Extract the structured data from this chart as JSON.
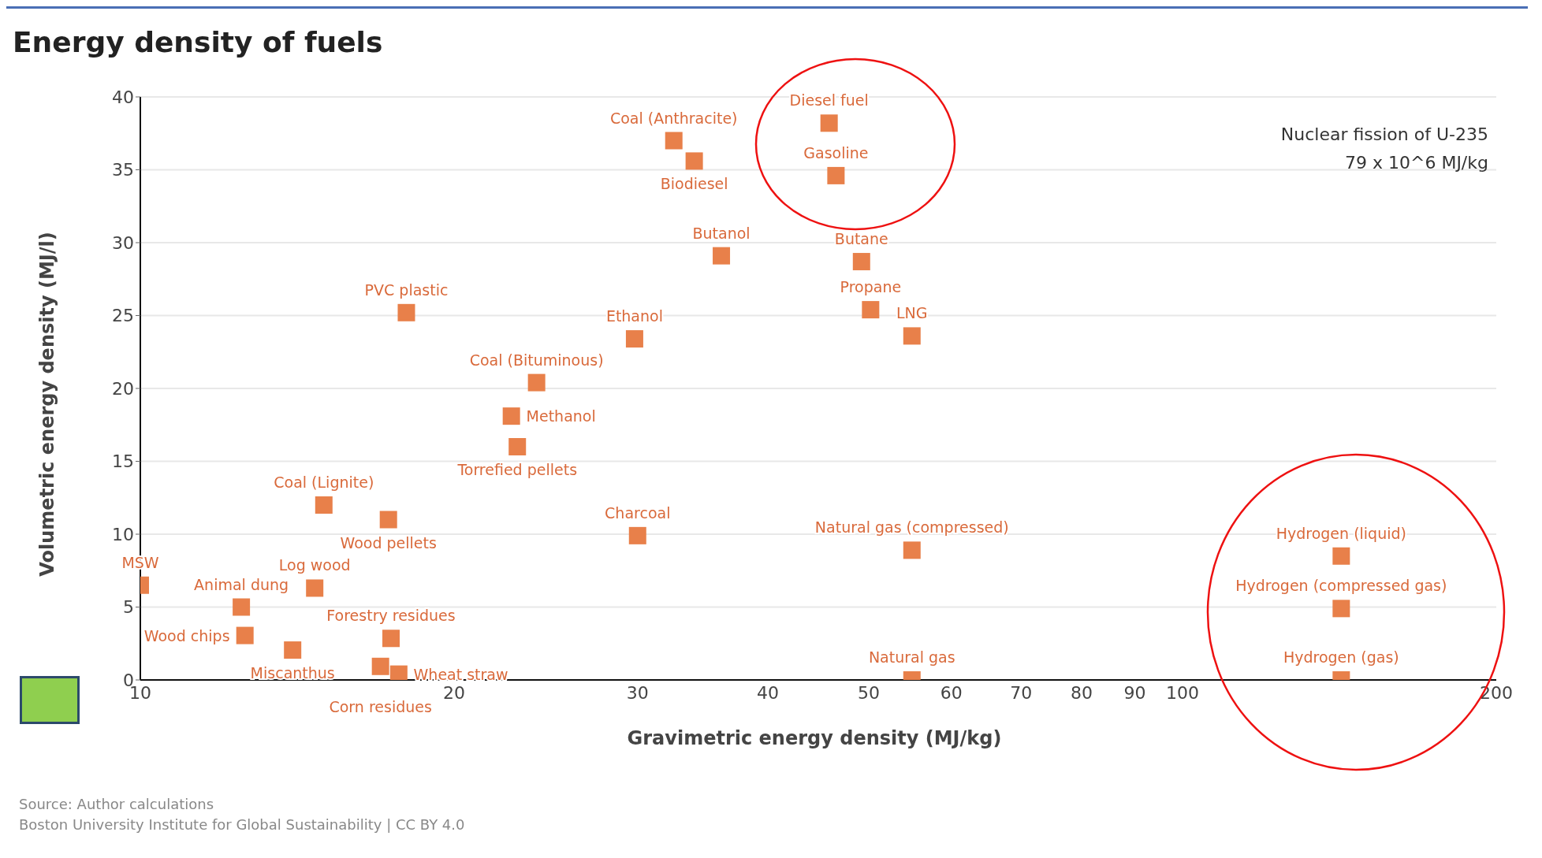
{
  "chart_data": {
    "type": "scatter",
    "title": "Energy density of fuels",
    "xlabel": "Gravimetric energy density (MJ/kg)",
    "ylabel": "Volumetric energy density (MJ/l)",
    "log": "x",
    "grid": "y",
    "legend": false,
    "marker": "square",
    "xlim": [
      10,
      200
    ],
    "xticks": [
      10,
      20,
      30,
      40,
      50,
      60,
      70,
      80,
      90,
      100,
      200
    ],
    "ylim": [
      0,
      40
    ],
    "yticks": [
      0,
      5,
      10,
      15,
      20,
      25,
      30,
      35,
      40
    ],
    "x": [
      10,
      12.5,
      12.6,
      14.0,
      14.7,
      15.0,
      17.3,
      17.4,
      17.0,
      17.7,
      18.0,
      22.7,
      24.0,
      23.0,
      29.8,
      30.0,
      32.5,
      34.0,
      36.1,
      45.8,
      46.5,
      49.2,
      50.2,
      55,
      55,
      55,
      142,
      142,
      142
    ],
    "series": [
      {
        "color": "#e8804a",
        "values": [
          6.5,
          5.0,
          3.05,
          2.05,
          6.3,
          12.0,
          11.0,
          2.85,
          0.93,
          0.4,
          25.2,
          18.1,
          20.4,
          16.0,
          23.4,
          9.9,
          37,
          35.6,
          29.1,
          38.2,
          34.6,
          28.7,
          25.4,
          23.6,
          8.9,
          0,
          8.5,
          4.9,
          0
        ]
      }
    ],
    "annotations": [
      "Nuclear fission of U-235",
      "79 x 10^6 MJ/kg",
      "Source: Author calculations",
      "Boston University Institute for Global Sustainability | CC BY 4.0",
      {
        "text": "MSW",
        "x": 10,
        "y": 6.5
      },
      {
        "text": "Animal dung",
        "x": 12.5,
        "y": 5.0
      },
      {
        "text": "Wood chips",
        "x": 12.6,
        "y": 3.05
      },
      {
        "text": "Miscanthus",
        "x": 14.0,
        "y": 2.05
      },
      {
        "text": "Log wood",
        "x": 14.7,
        "y": 6.3
      },
      {
        "text": "Coal (Lignite)",
        "x": 15.0,
        "y": 12.0
      },
      {
        "text": "Wood pellets",
        "x": 17.3,
        "y": 11.0
      },
      {
        "text": "Forestry residues",
        "x": 17.4,
        "y": 2.85
      },
      {
        "text": "Corn residues",
        "x": 17.0,
        "y": 0.93
      },
      {
        "text": "Wheat straw",
        "x": 17.7,
        "y": 0.4
      },
      {
        "text": "PVC plastic",
        "x": 18.0,
        "y": 25.2
      },
      {
        "text": "Methanol",
        "x": 22.7,
        "y": 18.1
      },
      {
        "text": "Coal (Bituminous)",
        "x": 24.0,
        "y": 20.4
      },
      {
        "text": "Torrefied pellets",
        "x": 23.0,
        "y": 16.0
      },
      {
        "text": "Ethanol",
        "x": 29.8,
        "y": 23.4
      },
      {
        "text": "Charcoal",
        "x": 30.0,
        "y": 9.9
      },
      {
        "text": "Coal (Anthracite)",
        "x": 32.5,
        "y": 37
      },
      {
        "text": "Biodiesel",
        "x": 34.0,
        "y": 35.6
      },
      {
        "text": "Butanol",
        "x": 36.1,
        "y": 29.1
      },
      {
        "text": "Diesel fuel",
        "x": 45.8,
        "y": 38.2
      },
      {
        "text": "Gasoline",
        "x": 46.5,
        "y": 34.6
      },
      {
        "text": "Butane",
        "x": 49.2,
        "y": 28.7
      },
      {
        "text": "Propane",
        "x": 50.2,
        "y": 25.4
      },
      {
        "text": "LNG",
        "x": 55,
        "y": 23.6
      },
      {
        "text": "Natural gas (compressed)",
        "x": 55,
        "y": 8.9
      },
      {
        "text": "Natural gas",
        "x": 55,
        "y": 0
      },
      {
        "text": "Hydrogen (liquid)",
        "x": 142,
        "y": 8.5
      },
      {
        "text": "Hydrogen (compressed gas)",
        "x": 142,
        "y": 4.9
      },
      {
        "text": "Hydrogen (gas)",
        "x": 142,
        "y": 0
      }
    ]
  }
}
